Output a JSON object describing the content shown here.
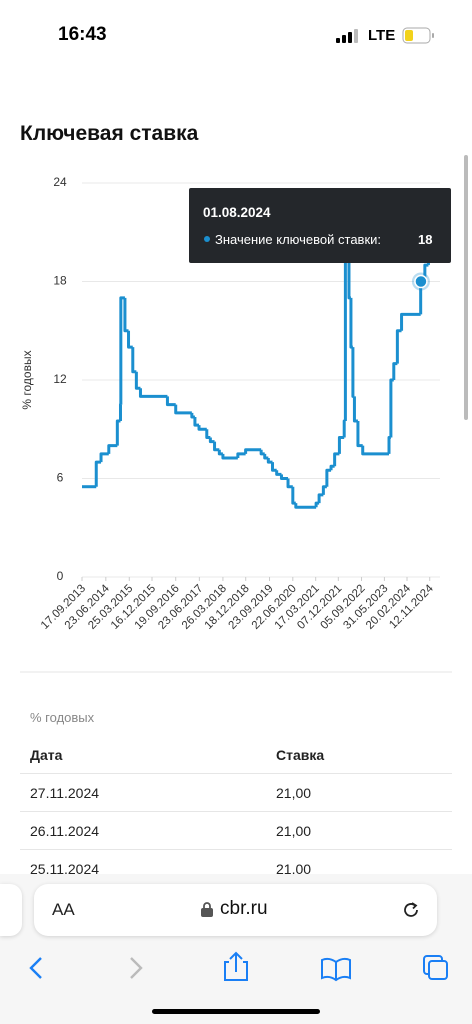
{
  "status_bar": {
    "time": "16:43",
    "network": "LTE"
  },
  "page": {
    "title": "Ключевая ставка"
  },
  "chart_data": {
    "type": "line",
    "ylabel": "% годовых",
    "step": "post",
    "x": [
      "17.09.2013",
      "03.03.2014",
      "28.04.2014",
      "28.07.2014",
      "05.11.2014",
      "12.12.2014",
      "16.12.2014",
      "02.02.2015",
      "16.03.2015",
      "05.05.2015",
      "16.06.2015",
      "03.08.2015",
      "14.06.2016",
      "19.09.2016",
      "27.03.2017",
      "02.05.2017",
      "19.06.2017",
      "18.09.2017",
      "30.10.2017",
      "18.12.2017",
      "12.02.2018",
      "26.03.2018",
      "17.09.2018",
      "17.12.2018",
      "17.06.2019",
      "29.07.2019",
      "09.09.2019",
      "28.10.2019",
      "16.12.2019",
      "10.02.2020",
      "27.04.2020",
      "22.06.2020",
      "27.07.2020",
      "22.03.2021",
      "26.04.2021",
      "15.06.2021",
      "26.07.2021",
      "13.09.2021",
      "25.10.2021",
      "20.12.2021",
      "14.02.2022",
      "28.02.2022",
      "11.04.2022",
      "04.05.2022",
      "27.05.2022",
      "14.06.2022",
      "25.07.2022",
      "19.09.2022",
      "24.07.2023",
      "15.08.2023",
      "18.09.2023",
      "30.10.2023",
      "18.12.2023",
      "29.07.2024",
      "16.09.2024",
      "28.10.2024",
      "27.11.2024"
    ],
    "series": [
      {
        "color": "#1b8fcf",
        "values": [
          5.5,
          7,
          7.5,
          8,
          9.5,
          10.5,
          17,
          15,
          14,
          12.5,
          11.5,
          11,
          10.5,
          10,
          9.75,
          9.25,
          9,
          8.5,
          8.25,
          7.75,
          7.5,
          7.25,
          7.5,
          7.75,
          7.5,
          7.25,
          7,
          6.5,
          6.25,
          6,
          5.5,
          4.5,
          4.25,
          4.5,
          5,
          5.5,
          6.5,
          6.75,
          7.5,
          8.5,
          9.5,
          20,
          17,
          14,
          11,
          9.5,
          8,
          7.5,
          8.5,
          12,
          13,
          15,
          16,
          18,
          19,
          21,
          21
        ]
      }
    ],
    "xlim": [
      "17.09.2013",
      "27.11.2024"
    ],
    "xticks": [
      "17.09.2013",
      "23.06.2014",
      "25.03.2015",
      "16.12.2015",
      "19.09.2016",
      "23.06.2017",
      "26.03.2018",
      "18.12.2018",
      "23.09.2019",
      "22.06.2020",
      "17.03.2021",
      "07.12.2021",
      "05.09.2022",
      "31.05.2023",
      "20.02.2024",
      "12.11.2024"
    ],
    "ylim": [
      0,
      24
    ],
    "yticks": [
      0,
      6,
      12,
      18,
      24
    ],
    "grid": true,
    "tooltip": {
      "date": "01.08.2024",
      "label": "Значение ключевой ставки:",
      "value": 18
    }
  },
  "table": {
    "caption": "% годовых",
    "headers": [
      "Дата",
      "Ставка"
    ],
    "rows": [
      [
        "27.11.2024",
        "21,00"
      ],
      [
        "26.11.2024",
        "21,00"
      ],
      [
        "25.11.2024",
        "21,00"
      ]
    ]
  },
  "browser": {
    "text_size": "AA",
    "url": "cbr.ru"
  }
}
